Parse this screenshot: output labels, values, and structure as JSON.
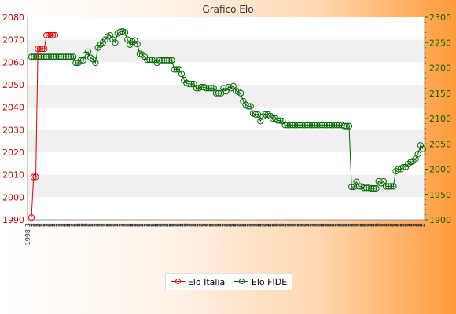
{
  "chart_data": {
    "type": "line",
    "title": "Grafico Elo",
    "colors": {
      "italia": "#dd0000",
      "fide": "#006600",
      "band": "#f0f0f0"
    },
    "y_left": {
      "range": [
        1990,
        2080
      ],
      "ticks": [
        "1990",
        "2000",
        "2010",
        "2020",
        "2030",
        "2040",
        "2050",
        "2060",
        "2070",
        "2080"
      ]
    },
    "y_right": {
      "range": [
        1900,
        2300
      ],
      "ticks": [
        "1900",
        "1950",
        "2000",
        "2050",
        "2100",
        "2150",
        "2200",
        "2250",
        "2300"
      ]
    },
    "grid": "horizontal bands",
    "legend_position": "bottom",
    "series": [
      {
        "name": "Elo Italia",
        "axis": "left",
        "values": [
          1991,
          2009,
          2009,
          2066,
          2066,
          2066,
          2066,
          2072,
          2072,
          2072,
          2072,
          2072
        ]
      },
      {
        "name": "Elo FIDE",
        "axis": "right",
        "values": [
          2222,
          2222,
          2222,
          2222,
          2222,
          2222,
          2222,
          2222,
          2222,
          2222,
          2222,
          2222,
          2222,
          2222,
          2222,
          2222,
          2222,
          2222,
          2210,
          2210,
          2215,
          2215,
          2226,
          2232,
          2220,
          2217,
          2210,
          2240,
          2246,
          2250,
          2256,
          2262,
          2264,
          2256,
          2250,
          2268,
          2271,
          2272,
          2270,
          2256,
          2246,
          2252,
          2254,
          2247,
          2228,
          2226,
          2222,
          2216,
          2216,
          2216,
          2216,
          2210,
          2215,
          2215,
          2215,
          2215,
          2215,
          2215,
          2197,
          2197,
          2197,
          2188,
          2176,
          2170,
          2168,
          2168,
          2168,
          2160,
          2160,
          2162,
          2162,
          2160,
          2160,
          2160,
          2160,
          2150,
          2150,
          2150,
          2160,
          2154,
          2162,
          2160,
          2164,
          2155,
          2153,
          2150,
          2134,
          2127,
          2124,
          2124,
          2110,
          2108,
          2108,
          2095,
          2104,
          2108,
          2108,
          2105,
          2100,
          2100,
          2096,
          2096,
          2095,
          2087,
          2087,
          2087,
          2087,
          2087,
          2087,
          2087,
          2087,
          2087,
          2087,
          2087,
          2087,
          2087,
          2087,
          2087,
          2087,
          2087,
          2087,
          2087,
          2087,
          2087,
          2087,
          2087,
          2087,
          2085,
          2085,
          2085,
          1965,
          1965,
          1975,
          1966,
          1966,
          1963,
          1963,
          1963,
          1962,
          1962,
          1962,
          1976,
          1972,
          1976,
          1966,
          1966,
          1966,
          1966,
          1996,
          2000,
          2000,
          2004,
          2004,
          2010,
          2014,
          2016,
          2020,
          2030,
          2047,
          2040
        ]
      }
    ],
    "x_labels": [
      "1998-3",
      "2",
      "2",
      "2",
      "2",
      "2",
      "2",
      "2",
      "2",
      "2",
      "2",
      "2",
      "2",
      "2",
      "2",
      "2",
      "2",
      "2",
      "2",
      "2",
      "2",
      "2",
      "2",
      "2",
      "2",
      "2",
      "2",
      "2",
      "2",
      "2",
      "2",
      "2",
      "2",
      "2",
      "2",
      "2",
      "2",
      "2",
      "2",
      "2",
      "2",
      "2",
      "2",
      "2",
      "2",
      "2",
      "2",
      "2",
      "2",
      "2",
      "2",
      "2",
      "2",
      "2",
      "2",
      "2",
      "2",
      "2",
      "2",
      "2",
      "2",
      "2",
      "2",
      "2",
      "2",
      "2",
      "2",
      "2",
      "2",
      "2",
      "2",
      "2",
      "2",
      "2",
      "2",
      "2",
      "2",
      "2",
      "2",
      "2",
      "2",
      "2",
      "2",
      "2",
      "2",
      "2",
      "2",
      "2",
      "2",
      "2",
      "2",
      "2",
      "2",
      "2",
      "2",
      "2",
      "2",
      "2",
      "2",
      "2",
      "2",
      "2",
      "2",
      "2",
      "2",
      "2",
      "2",
      "2",
      "2",
      "2",
      "2",
      "2",
      "2",
      "2",
      "2",
      "2",
      "2",
      "2",
      "2",
      "2",
      "2",
      "2",
      "2",
      "2",
      "2",
      "2",
      "2",
      "2",
      "2",
      "2",
      "2",
      "2",
      "2",
      "2",
      "2",
      "2",
      "2",
      "2",
      "2",
      "2",
      "2",
      "2",
      "2",
      "2",
      "2",
      "2",
      "2",
      "2",
      "2",
      "2",
      "2",
      "2",
      "2",
      "2",
      "2",
      "2",
      "2",
      "2"
    ]
  }
}
